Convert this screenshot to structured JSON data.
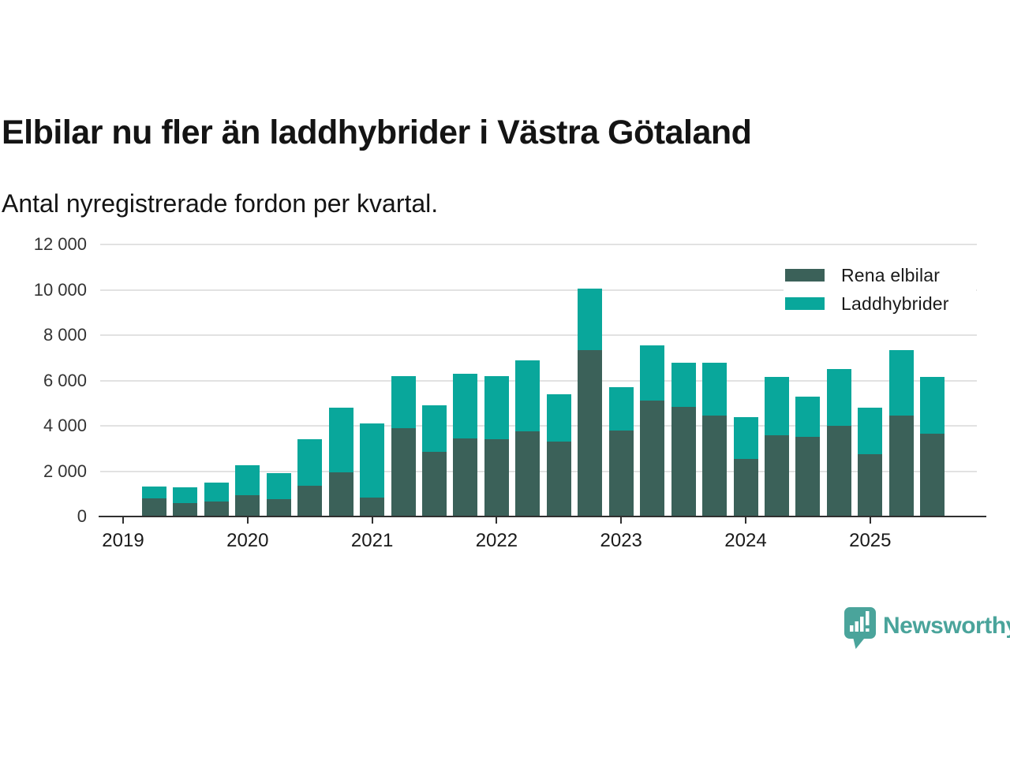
{
  "header": {
    "title": "Elbilar nu fler än laddhybrider i Västra Götaland",
    "subtitle": "Antal nyregistrerade fordon per kvartal."
  },
  "legend": {
    "items": [
      {
        "label": "Rena elbilar",
        "color": "#3b6159"
      },
      {
        "label": "Laddhybrider",
        "color": "#09a79b"
      }
    ]
  },
  "footer": {
    "brand": "Newsworthy"
  },
  "colors": {
    "bar_dark": "#3b6159",
    "bar_teal": "#09a79b",
    "grid": "#e2e2e2",
    "axis": "#303030",
    "text": "#141414",
    "axis_text": "#333333",
    "brand": "#4aa49b"
  },
  "chart_data": {
    "type": "bar",
    "stacked": true,
    "title": "Elbilar nu fler än laddhybrider i Västra Götaland",
    "subtitle": "Antal nyregistrerade fordon per kvartal.",
    "xlabel": "",
    "ylabel": "",
    "ylim": [
      0,
      12000
    ],
    "grid": "horizontal",
    "legend_position": "top-right",
    "categories": [
      "2019 Q1",
      "2019 Q2",
      "2019 Q3",
      "2019 Q4",
      "2020 Q1",
      "2020 Q2",
      "2020 Q3",
      "2020 Q4",
      "2021 Q1",
      "2021 Q2",
      "2021 Q3",
      "2021 Q4",
      "2022 Q1",
      "2022 Q2",
      "2022 Q3",
      "2022 Q4",
      "2023 Q1",
      "2023 Q2",
      "2023 Q3",
      "2023 Q4",
      "2024 Q1",
      "2024 Q2",
      "2024 Q3",
      "2024 Q4",
      "2025 Q1",
      "2025 Q2"
    ],
    "series": [
      {
        "name": "Rena elbilar",
        "color": "#3b6159",
        "values": [
          800,
          600,
          660,
          930,
          780,
          1350,
          1950,
          850,
          3900,
          2850,
          3450,
          3400,
          3750,
          3300,
          7350,
          3800,
          5100,
          4850,
          4450,
          2550,
          3600,
          3500,
          4000,
          2750,
          4450,
          3650
        ]
      },
      {
        "name": "Laddhybrider",
        "color": "#09a79b",
        "values": [
          530,
          670,
          840,
          1320,
          1120,
          2050,
          2850,
          3250,
          2300,
          2050,
          2850,
          2800,
          3150,
          2100,
          2700,
          1900,
          2450,
          1950,
          2350,
          1850,
          2550,
          1800,
          2500,
          2050,
          2900,
          2500
        ]
      }
    ],
    "y_ticks": [
      {
        "v": 0,
        "label": "0"
      },
      {
        "v": 2000,
        "label": "2 000"
      },
      {
        "v": 4000,
        "label": "4 000"
      },
      {
        "v": 6000,
        "label": "6 000"
      },
      {
        "v": 8000,
        "label": "8 000"
      },
      {
        "v": 10000,
        "label": "10 000"
      },
      {
        "v": 12000,
        "label": "12 000"
      }
    ],
    "x_tick_labels": [
      "2019",
      "2020",
      "2021",
      "2022",
      "2023",
      "2024",
      "2025"
    ]
  }
}
